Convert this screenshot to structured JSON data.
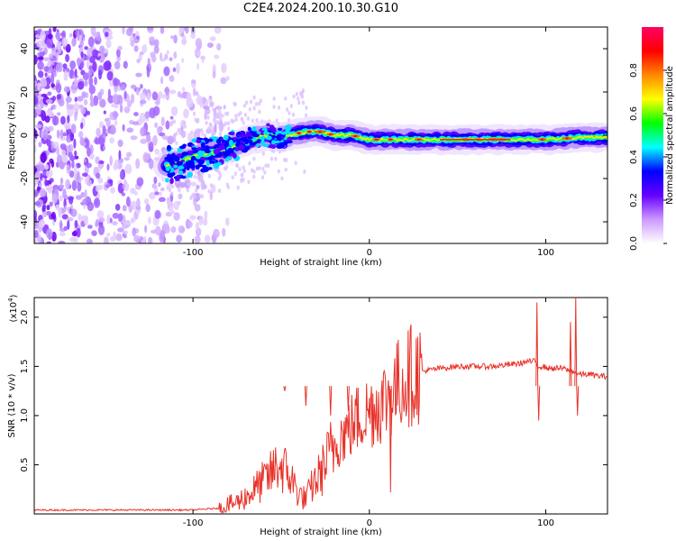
{
  "title": "C2E4.2024.200.10.30.G10",
  "chart_data": [
    {
      "type": "heatmap",
      "xlabel": "Height of straight line (km)",
      "ylabel": "Frequency (Hz)",
      "xlim": [
        -190,
        135
      ],
      "ylim": [
        -50,
        50
      ],
      "xticks": [
        -100,
        0,
        100
      ],
      "yticks": [
        -40,
        -20,
        0,
        20,
        40
      ],
      "colorbar": {
        "label": "Normalized spectral amplitude",
        "range": [
          0,
          1
        ],
        "ticks": [
          0.0,
          0.2,
          0.4,
          0.6,
          0.8
        ],
        "tick_labels": [
          "0.0",
          "0.2",
          "0.4",
          "0.6",
          "0.8"
        ],
        "colormap": [
          "#ffffff",
          "#cc99ff",
          "#6600ff",
          "#0000ff",
          "#00ffff",
          "#00ff00",
          "#ffff00",
          "#ff8800",
          "#ff0000",
          "#ff0066"
        ]
      },
      "ridge": {
        "x": [
          -115,
          -100,
          -80,
          -60,
          -50,
          -40,
          -30,
          -20,
          -10,
          0,
          20,
          40,
          60,
          80,
          100,
          120,
          135
        ],
        "y": [
          -14,
          -10,
          -6,
          0,
          -1,
          1,
          2,
          0,
          0,
          -2,
          -2,
          -2,
          -2,
          -2,
          -2,
          -1,
          -1
        ]
      }
    },
    {
      "type": "line",
      "xlabel": "Height of straight line (km)",
      "ylabel": "SNR (10 * v/v)",
      "scale_label": "(x10",
      "scale_exp": "4",
      "scale_close": ")",
      "xlim": [
        -190,
        135
      ],
      "ylim": [
        0,
        2.2
      ],
      "xticks": [
        -100,
        0,
        100
      ],
      "yticks": [
        0.5,
        1.0,
        1.5,
        2.0
      ],
      "ytick_labels": [
        "0.5",
        "1.0",
        "1.5",
        "2.0"
      ],
      "color": "#e8332a",
      "series": [
        {
          "name": "SNR",
          "x": [
            -190,
            -150,
            -100,
            -85,
            -75,
            -68,
            -62,
            -56,
            -52,
            -48,
            -44,
            -40,
            -36,
            -32,
            -28,
            -24,
            -20,
            -16,
            -12,
            -8,
            -4,
            0,
            4,
            8,
            12,
            16,
            20,
            24,
            30,
            40,
            50,
            60,
            70,
            80,
            85,
            90,
            94,
            96,
            98,
            102,
            110,
            114,
            116,
            118,
            120,
            125,
            130,
            135
          ],
          "y": [
            0.04,
            0.04,
            0.04,
            0.06,
            0.12,
            0.2,
            0.3,
            0.4,
            0.5,
            0.45,
            0.35,
            0.2,
            0.15,
            0.3,
            0.4,
            0.55,
            0.7,
            0.8,
            0.85,
            0.95,
            1.0,
            1.05,
            1.1,
            1.15,
            1.22,
            1.3,
            1.38,
            1.42,
            1.45,
            1.48,
            1.5,
            1.5,
            1.5,
            1.52,
            1.53,
            1.55,
            1.55,
            1.5,
            1.5,
            1.48,
            1.48,
            1.45,
            1.45,
            1.42,
            1.42,
            1.42,
            1.4,
            1.4
          ]
        }
      ]
    }
  ]
}
